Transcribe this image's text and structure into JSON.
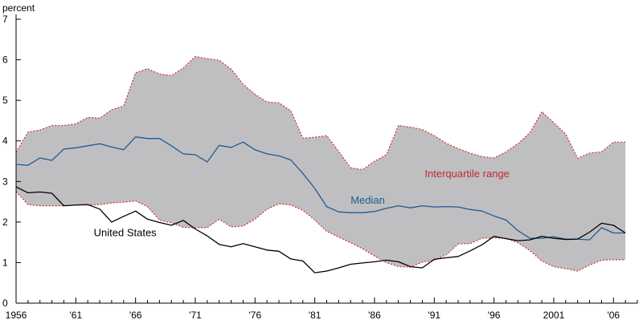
{
  "chart_data": {
    "type": "area",
    "ylabel": "percent",
    "ylim": [
      0,
      7
    ],
    "xlim": [
      1956,
      2008
    ],
    "yticks": [
      0,
      1,
      2,
      3,
      4,
      5,
      6,
      7
    ],
    "xticks": [
      {
        "value": 1956,
        "label": "1956"
      },
      {
        "value": 1961,
        "label": "'61"
      },
      {
        "value": 1966,
        "label": "'66"
      },
      {
        "value": 1971,
        "label": "'71"
      },
      {
        "value": 1976,
        "label": "'76"
      },
      {
        "value": 1981,
        "label": "'81"
      },
      {
        "value": 1986,
        "label": "'86"
      },
      {
        "value": 1991,
        "label": "'91"
      },
      {
        "value": 1996,
        "label": "'96"
      },
      {
        "value": 2001,
        "label": "2001"
      },
      {
        "value": 2006,
        "label": "'06"
      }
    ],
    "x": [
      1956,
      1957,
      1958,
      1959,
      1960,
      1961,
      1962,
      1963,
      1964,
      1965,
      1966,
      1967,
      1968,
      1969,
      1970,
      1971,
      1972,
      1973,
      1974,
      1975,
      1976,
      1977,
      1978,
      1979,
      1980,
      1981,
      1982,
      1983,
      1984,
      1985,
      1986,
      1987,
      1988,
      1989,
      1990,
      1991,
      1992,
      1993,
      1994,
      1995,
      1996,
      1997,
      1998,
      1999,
      2000,
      2001,
      2002,
      2003,
      2004,
      2005,
      2006,
      2007
    ],
    "series": [
      {
        "name": "Interquartile range",
        "kind": "band",
        "color": "#bfbfc2",
        "edge_color": "#d62d2d",
        "upper": [
          3.72,
          4.22,
          4.27,
          4.38,
          4.38,
          4.42,
          4.58,
          4.56,
          4.77,
          4.86,
          5.68,
          5.78,
          5.65,
          5.61,
          5.8,
          6.08,
          6.03,
          5.99,
          5.77,
          5.4,
          5.15,
          4.96,
          4.94,
          4.74,
          4.07,
          4.09,
          4.13,
          3.74,
          3.34,
          3.29,
          3.5,
          3.66,
          4.38,
          4.34,
          4.28,
          4.13,
          3.94,
          3.81,
          3.7,
          3.61,
          3.58,
          3.73,
          3.93,
          4.2,
          4.72,
          4.45,
          4.17,
          3.57,
          3.7,
          3.73,
          3.97,
          3.97
        ],
        "lower": [
          2.75,
          2.43,
          2.4,
          2.4,
          2.4,
          2.42,
          2.42,
          2.43,
          2.47,
          2.49,
          2.52,
          2.38,
          2.05,
          1.98,
          1.87,
          1.86,
          1.86,
          2.07,
          1.88,
          1.9,
          2.07,
          2.32,
          2.45,
          2.42,
          2.29,
          2.05,
          1.77,
          1.63,
          1.49,
          1.34,
          1.16,
          1.0,
          0.9,
          0.89,
          1.01,
          1.06,
          1.19,
          1.46,
          1.47,
          1.6,
          1.61,
          1.6,
          1.49,
          1.3,
          1.04,
          0.9,
          0.85,
          0.79,
          0.94,
          1.06,
          1.07,
          1.07
        ]
      },
      {
        "name": "Median",
        "kind": "line",
        "color": "#1e5b91",
        "values": [
          3.42,
          3.4,
          3.58,
          3.52,
          3.8,
          3.83,
          3.88,
          3.93,
          3.85,
          3.78,
          4.1,
          4.06,
          4.06,
          3.88,
          3.68,
          3.66,
          3.48,
          3.89,
          3.84,
          3.97,
          3.78,
          3.68,
          3.63,
          3.53,
          3.2,
          2.83,
          2.38,
          2.25,
          2.23,
          2.23,
          2.26,
          2.34,
          2.4,
          2.35,
          2.4,
          2.37,
          2.38,
          2.37,
          2.31,
          2.27,
          2.15,
          2.05,
          1.79,
          1.6,
          1.6,
          1.64,
          1.58,
          1.58,
          1.56,
          1.86,
          1.73,
          1.73
        ]
      },
      {
        "name": "United States",
        "kind": "line",
        "color": "#000000",
        "values": [
          2.87,
          2.72,
          2.74,
          2.71,
          2.4,
          2.42,
          2.43,
          2.32,
          2.0,
          2.14,
          2.27,
          2.07,
          1.99,
          1.92,
          2.04,
          1.83,
          1.66,
          1.45,
          1.39,
          1.47,
          1.39,
          1.31,
          1.28,
          1.09,
          1.04,
          0.75,
          0.79,
          0.87,
          0.96,
          0.99,
          1.02,
          1.06,
          1.02,
          0.9,
          0.87,
          1.08,
          1.12,
          1.15,
          1.29,
          1.44,
          1.65,
          1.59,
          1.54,
          1.56,
          1.65,
          1.6,
          1.57,
          1.58,
          1.75,
          1.97,
          1.92,
          1.73
        ]
      }
    ],
    "annotations": [
      {
        "text": "Interquartile range",
        "x": 1990.2,
        "y": 3.1,
        "color": "#c0282d"
      },
      {
        "text": "Median",
        "x": 1984.0,
        "y": 2.45,
        "color": "#1e5b91"
      },
      {
        "text": "United States",
        "x": 1962.5,
        "y": 1.65,
        "color": "#000000"
      }
    ]
  }
}
